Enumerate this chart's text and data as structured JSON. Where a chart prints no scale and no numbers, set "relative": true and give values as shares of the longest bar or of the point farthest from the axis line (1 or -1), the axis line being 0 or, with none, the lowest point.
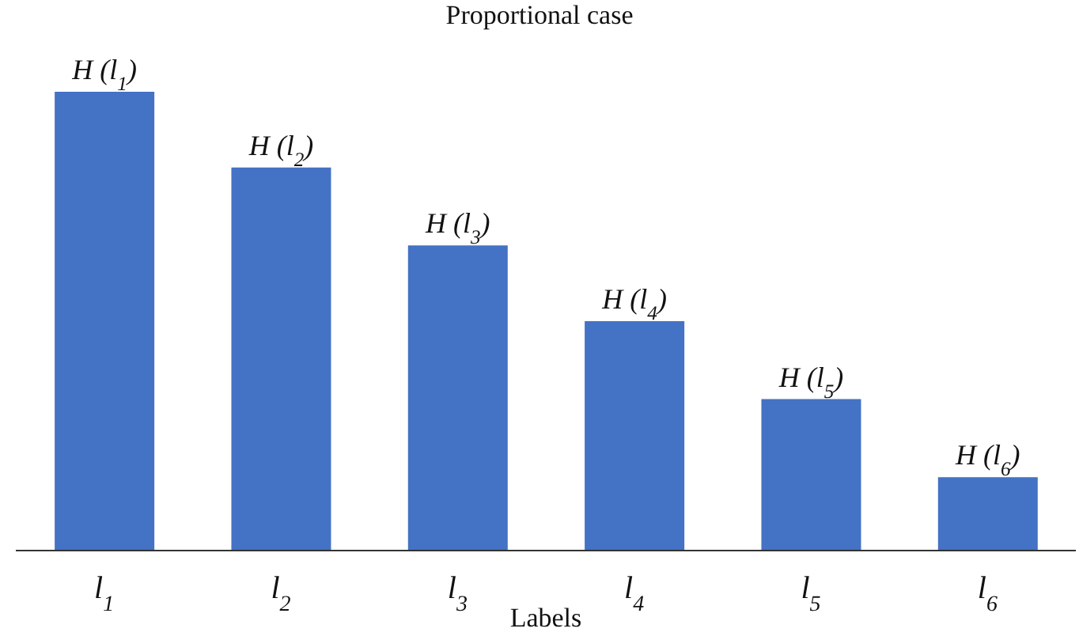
{
  "chart_data": {
    "type": "bar",
    "title": "Proportional case",
    "xlabel": "Labels",
    "relative": true,
    "color": "#4472c4",
    "categories": [
      "l$_{1}$",
      "l$_{2}$",
      "l$_{3}$",
      "l$_{4}$",
      "l$_{5}$",
      "l$_{6}$"
    ],
    "values": [
      1,
      0.835,
      0.665,
      0.5,
      0.33,
      0.16
    ],
    "annotations": [
      {
        "text": "H (l$_{1}$)",
        "x": "l$_{1}$",
        "y": 1
      },
      {
        "text": "H (l$_{2}$)",
        "x": "l$_{2}$",
        "y": 0.835
      },
      {
        "text": "H (l$_{3}$)",
        "x": "l$_{3}$",
        "y": 0.665
      },
      {
        "text": "H (l$_{4}$)",
        "x": "l$_{4}$",
        "y": 0.5
      },
      {
        "text": "H (l$_{5}$)",
        "x": "l$_{5}$",
        "y": 0.33
      },
      {
        "text": "H (l$_{6}$)",
        "x": "l$_{6}$",
        "y": 0.16
      }
    ],
    "grid": false,
    "legend": false
  }
}
